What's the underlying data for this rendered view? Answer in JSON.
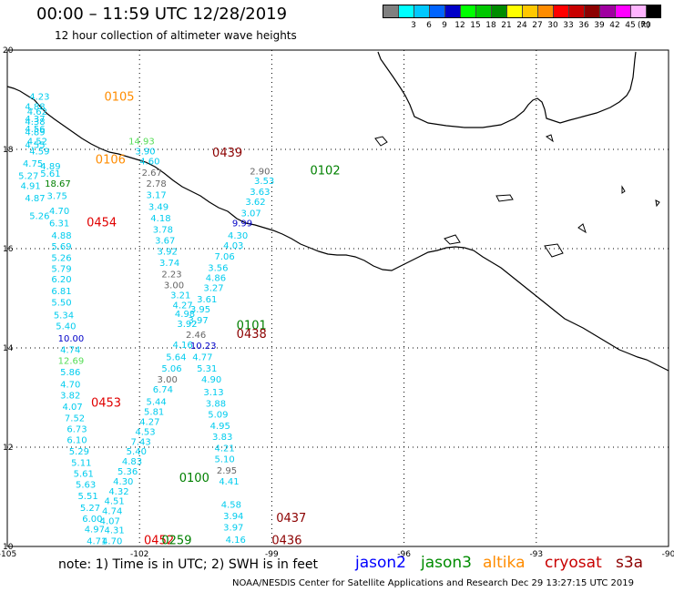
{
  "header": {
    "title": "00:00 – 11:59 UTC 12/28/2019",
    "subtitle": "12 hour collection of altimeter wave heights"
  },
  "legend": {
    "unit": "(ft)",
    "bins": [
      {
        "label": "",
        "color": "#808080"
      },
      {
        "label": "3",
        "color": "#00ffff"
      },
      {
        "label": "6",
        "color": "#00c8ff"
      },
      {
        "label": "9",
        "color": "#0064ff"
      },
      {
        "label": "12",
        "color": "#0000c8"
      },
      {
        "label": "15",
        "color": "#00ff00"
      },
      {
        "label": "18",
        "color": "#00c800"
      },
      {
        "label": "21",
        "color": "#008c00"
      },
      {
        "label": "24",
        "color": "#ffff00"
      },
      {
        "label": "27",
        "color": "#ffc800"
      },
      {
        "label": "30",
        "color": "#ff8c00"
      },
      {
        "label": "33",
        "color": "#ff0000"
      },
      {
        "label": "36",
        "color": "#c80000"
      },
      {
        "label": "39",
        "color": "#8c0000"
      },
      {
        "label": "42",
        "color": "#a000a0"
      },
      {
        "label": "45",
        "color": "#ff00ff"
      },
      {
        "label": "70",
        "color": "#ffb4ff"
      },
      {
        "label": "",
        "color": "#000000"
      }
    ]
  },
  "axes": {
    "lon_ticks": [
      "-105",
      "-102",
      "-99",
      "-96",
      "-93",
      "-90"
    ],
    "lat_ticks": [
      "20",
      "18",
      "16",
      "14",
      "12",
      "10"
    ]
  },
  "colors": {
    "jason2": "#0000ff",
    "jason3": "#008c00",
    "altika": "#ff8c00",
    "cryosat": "#c80000",
    "s3a": "#8c0000",
    "cyan": "#00ccee",
    "gray": "#666666",
    "navy": "#0000c8",
    "lightgreen": "#55dd55",
    "darkgreen": "#008000",
    "red": "#e00000",
    "darkred": "#8c0000"
  },
  "track_labels": [
    {
      "text": "0105",
      "lon": -102.8,
      "lat": 18.98,
      "color": "altika"
    },
    {
      "text": "0106",
      "lon": -103.0,
      "lat": 17.72,
      "color": "altika"
    },
    {
      "text": "0454",
      "lon": -103.2,
      "lat": 16.45,
      "color": "red"
    },
    {
      "text": "0453",
      "lon": -103.1,
      "lat": 12.82,
      "color": "red"
    },
    {
      "text": "0439",
      "lon": -100.35,
      "lat": 17.85,
      "color": "darkred"
    },
    {
      "text": "0102",
      "lon": -98.13,
      "lat": 17.5,
      "color": "darkgreen"
    },
    {
      "text": "0101",
      "lon": -99.8,
      "lat": 14.38,
      "color": "darkgreen"
    },
    {
      "text": "0438",
      "lon": -99.8,
      "lat": 14.2,
      "color": "darkred"
    },
    {
      "text": "0100",
      "lon": -101.1,
      "lat": 11.3,
      "color": "darkgreen"
    },
    {
      "text": "0437",
      "lon": -98.9,
      "lat": 10.5,
      "color": "darkred"
    },
    {
      "text": "0436",
      "lon": -99.0,
      "lat": 10.05,
      "color": "darkred"
    },
    {
      "text": "0452",
      "lon": -101.9,
      "lat": 10.05,
      "color": "red"
    },
    {
      "text": "0259",
      "lon": -101.5,
      "lat": 10.05,
      "color": "darkgreen"
    }
  ],
  "observations": [
    {
      "v": "4.23",
      "lon": -104.5,
      "lat": 19.0,
      "c": "cyan"
    },
    {
      "v": "4.88",
      "lon": -104.6,
      "lat": 18.8,
      "c": "cyan"
    },
    {
      "v": "4.62",
      "lon": -104.55,
      "lat": 18.7,
      "c": "cyan"
    },
    {
      "v": "4.37",
      "lon": -104.6,
      "lat": 18.55,
      "c": "cyan"
    },
    {
      "v": "4.38",
      "lon": -104.6,
      "lat": 18.5,
      "c": "cyan"
    },
    {
      "v": "4.56",
      "lon": -104.6,
      "lat": 18.35,
      "c": "cyan"
    },
    {
      "v": "4.89",
      "lon": -104.6,
      "lat": 18.28,
      "c": "cyan"
    },
    {
      "v": "4.52",
      "lon": -104.55,
      "lat": 18.1,
      "c": "cyan"
    },
    {
      "v": "4.55",
      "lon": -104.6,
      "lat": 18.03,
      "c": "cyan"
    },
    {
      "v": "4.59",
      "lon": -104.5,
      "lat": 17.9,
      "c": "cyan"
    },
    {
      "v": "4.75",
      "lon": -104.65,
      "lat": 17.65,
      "c": "cyan"
    },
    {
      "v": "4.89",
      "lon": -104.25,
      "lat": 17.6,
      "c": "cyan"
    },
    {
      "v": "5.61",
      "lon": -104.25,
      "lat": 17.45,
      "c": "cyan"
    },
    {
      "v": "5.27",
      "lon": -104.75,
      "lat": 17.4,
      "c": "cyan"
    },
    {
      "v": "18.67",
      "lon": -104.15,
      "lat": 17.25,
      "c": "darkgreen"
    },
    {
      "v": "4.91",
      "lon": -104.7,
      "lat": 17.2,
      "c": "cyan"
    },
    {
      "v": "3.75",
      "lon": -104.1,
      "lat": 17.0,
      "c": "cyan"
    },
    {
      "v": "4.87",
      "lon": -104.6,
      "lat": 16.95,
      "c": "cyan"
    },
    {
      "v": "4.70",
      "lon": -104.05,
      "lat": 16.7,
      "c": "cyan"
    },
    {
      "v": "5.26",
      "lon": -104.5,
      "lat": 16.6,
      "c": "cyan"
    },
    {
      "v": "6.31",
      "lon": -104.05,
      "lat": 16.45,
      "c": "cyan"
    },
    {
      "v": "4.88",
      "lon": -104.0,
      "lat": 16.2,
      "c": "cyan"
    },
    {
      "v": "5.69",
      "lon": -104.0,
      "lat": 15.98,
      "c": "cyan"
    },
    {
      "v": "5.26",
      "lon": -104.0,
      "lat": 15.75,
      "c": "cyan"
    },
    {
      "v": "5.79",
      "lon": -104.0,
      "lat": 15.53,
      "c": "cyan"
    },
    {
      "v": "6.20",
      "lon": -104.0,
      "lat": 15.32,
      "c": "cyan"
    },
    {
      "v": "6.81",
      "lon": -104.0,
      "lat": 15.08,
      "c": "cyan"
    },
    {
      "v": "5.50",
      "lon": -104.0,
      "lat": 14.85,
      "c": "cyan"
    },
    {
      "v": "5.34",
      "lon": -103.95,
      "lat": 14.6,
      "c": "cyan"
    },
    {
      "v": "5.40",
      "lon": -103.9,
      "lat": 14.38,
      "c": "cyan"
    },
    {
      "v": "10.00",
      "lon": -103.85,
      "lat": 14.13,
      "c": "navy"
    },
    {
      "v": "4.74",
      "lon": -103.8,
      "lat": 13.9,
      "c": "cyan"
    },
    {
      "v": "12.69",
      "lon": -103.85,
      "lat": 13.68,
      "c": "lightgreen"
    },
    {
      "v": "5.86",
      "lon": -103.8,
      "lat": 13.45,
      "c": "cyan"
    },
    {
      "v": "4.70",
      "lon": -103.8,
      "lat": 13.2,
      "c": "cyan"
    },
    {
      "v": "3.82",
      "lon": -103.8,
      "lat": 12.98,
      "c": "cyan"
    },
    {
      "v": "4.07",
      "lon": -103.75,
      "lat": 12.75,
      "c": "cyan"
    },
    {
      "v": "7.52",
      "lon": -103.7,
      "lat": 12.52,
      "c": "cyan"
    },
    {
      "v": "6.73",
      "lon": -103.65,
      "lat": 12.3,
      "c": "cyan"
    },
    {
      "v": "6.10",
      "lon": -103.65,
      "lat": 12.08,
      "c": "cyan"
    },
    {
      "v": "5.29",
      "lon": -103.6,
      "lat": 11.85,
      "c": "cyan"
    },
    {
      "v": "5.11",
      "lon": -103.55,
      "lat": 11.62,
      "c": "cyan"
    },
    {
      "v": "5.61",
      "lon": -103.5,
      "lat": 11.4,
      "c": "cyan"
    },
    {
      "v": "5.63",
      "lon": -103.45,
      "lat": 11.18,
      "c": "cyan"
    },
    {
      "v": "5.51",
      "lon": -103.4,
      "lat": 10.95,
      "c": "cyan"
    },
    {
      "v": "5.27",
      "lon": -103.35,
      "lat": 10.72,
      "c": "cyan"
    },
    {
      "v": "6.00",
      "lon": -103.3,
      "lat": 10.5,
      "c": "cyan"
    },
    {
      "v": "4.97",
      "lon": -103.25,
      "lat": 10.28,
      "c": "cyan"
    },
    {
      "v": "4.71",
      "lon": -103.2,
      "lat": 10.05,
      "c": "cyan"
    },
    {
      "v": "14.93",
      "lon": -102.25,
      "lat": 18.1,
      "c": "lightgreen"
    },
    {
      "v": "3.90",
      "lon": -102.1,
      "lat": 17.9,
      "c": "cyan"
    },
    {
      "v": "4.60",
      "lon": -102.0,
      "lat": 17.7,
      "c": "cyan"
    },
    {
      "v": "2.67",
      "lon": -101.95,
      "lat": 17.47,
      "c": "gray"
    },
    {
      "v": "2.78",
      "lon": -101.85,
      "lat": 17.25,
      "c": "gray"
    },
    {
      "v": "3.17",
      "lon": -101.85,
      "lat": 17.02,
      "c": "cyan"
    },
    {
      "v": "3.49",
      "lon": -101.8,
      "lat": 16.78,
      "c": "cyan"
    },
    {
      "v": "4.18",
      "lon": -101.75,
      "lat": 16.55,
      "c": "cyan"
    },
    {
      "v": "3.78",
      "lon": -101.7,
      "lat": 16.32,
      "c": "cyan"
    },
    {
      "v": "3.67",
      "lon": -101.65,
      "lat": 16.1,
      "c": "cyan"
    },
    {
      "v": "3.92",
      "lon": -101.6,
      "lat": 15.88,
      "c": "cyan"
    },
    {
      "v": "3.74",
      "lon": -101.55,
      "lat": 15.65,
      "c": "cyan"
    },
    {
      "v": "2.23",
      "lon": -101.5,
      "lat": 15.42,
      "c": "gray"
    },
    {
      "v": "3.00",
      "lon": -101.45,
      "lat": 15.2,
      "c": "gray"
    },
    {
      "v": "3.21",
      "lon": -101.3,
      "lat": 15.0,
      "c": "cyan"
    },
    {
      "v": "4.27",
      "lon": -101.25,
      "lat": 14.8,
      "c": "cyan"
    },
    {
      "v": "4.98",
      "lon": -101.2,
      "lat": 14.62,
      "c": "cyan"
    },
    {
      "v": "3.92",
      "lon": -101.15,
      "lat": 14.42,
      "c": "cyan"
    },
    {
      "v": "2.46",
      "lon": -100.95,
      "lat": 14.2,
      "c": "gray"
    },
    {
      "v": "4.16",
      "lon": -101.25,
      "lat": 14.0,
      "c": "cyan"
    },
    {
      "v": "10.23",
      "lon": -100.85,
      "lat": 13.98,
      "c": "navy"
    },
    {
      "v": "5.64",
      "lon": -101.4,
      "lat": 13.75,
      "c": "cyan"
    },
    {
      "v": "4.77",
      "lon": -100.8,
      "lat": 13.75,
      "c": "cyan"
    },
    {
      "v": "5.06",
      "lon": -101.5,
      "lat": 13.52,
      "c": "cyan"
    },
    {
      "v": "5.31",
      "lon": -100.7,
      "lat": 13.52,
      "c": "cyan"
    },
    {
      "v": "3.00",
      "lon": -101.6,
      "lat": 13.3,
      "c": "gray"
    },
    {
      "v": "4.90",
      "lon": -100.6,
      "lat": 13.3,
      "c": "cyan"
    },
    {
      "v": "6.74",
      "lon": -101.7,
      "lat": 13.1,
      "c": "cyan"
    },
    {
      "v": "3.13",
      "lon": -100.55,
      "lat": 13.05,
      "c": "cyan"
    },
    {
      "v": "5.44",
      "lon": -101.85,
      "lat": 12.85,
      "c": "cyan"
    },
    {
      "v": "3.88",
      "lon": -100.5,
      "lat": 12.82,
      "c": "cyan"
    },
    {
      "v": "5.81",
      "lon": -101.9,
      "lat": 12.65,
      "c": "cyan"
    },
    {
      "v": "5.09",
      "lon": -100.45,
      "lat": 12.6,
      "c": "cyan"
    },
    {
      "v": "4.27",
      "lon": -102.0,
      "lat": 12.45,
      "c": "cyan"
    },
    {
      "v": "4.95",
      "lon": -100.4,
      "lat": 12.37,
      "c": "cyan"
    },
    {
      "v": "4.53",
      "lon": -102.1,
      "lat": 12.25,
      "c": "cyan"
    },
    {
      "v": "7.43",
      "lon": -102.2,
      "lat": 12.05,
      "c": "cyan"
    },
    {
      "v": "3.83",
      "lon": -100.35,
      "lat": 12.15,
      "c": "cyan"
    },
    {
      "v": "5.40",
      "lon": -102.3,
      "lat": 11.85,
      "c": "cyan"
    },
    {
      "v": "4.21",
      "lon": -100.3,
      "lat": 11.92,
      "c": "cyan"
    },
    {
      "v": "4.83",
      "lon": -102.4,
      "lat": 11.65,
      "c": "cyan"
    },
    {
      "v": "5.10",
      "lon": -100.3,
      "lat": 11.7,
      "c": "cyan"
    },
    {
      "v": "5.36",
      "lon": -102.5,
      "lat": 11.45,
      "c": "cyan"
    },
    {
      "v": "2.95",
      "lon": -100.25,
      "lat": 11.47,
      "c": "gray"
    },
    {
      "v": "4.30",
      "lon": -102.6,
      "lat": 11.25,
      "c": "cyan"
    },
    {
      "v": "4.32",
      "lon": -102.7,
      "lat": 11.05,
      "c": "cyan"
    },
    {
      "v": "4.41",
      "lon": -100.2,
      "lat": 11.25,
      "c": "cyan"
    },
    {
      "v": "4.51",
      "lon": -102.8,
      "lat": 10.85,
      "c": "cyan"
    },
    {
      "v": "4.58",
      "lon": -100.15,
      "lat": 10.78,
      "c": "cyan"
    },
    {
      "v": "4.74",
      "lon": -102.85,
      "lat": 10.65,
      "c": "cyan"
    },
    {
      "v": "3.94",
      "lon": -100.1,
      "lat": 10.55,
      "c": "cyan"
    },
    {
      "v": "4.07",
      "lon": -102.9,
      "lat": 10.45,
      "c": "cyan"
    },
    {
      "v": "3.97",
      "lon": -100.1,
      "lat": 10.32,
      "c": "cyan"
    },
    {
      "v": "4.31",
      "lon": -102.8,
      "lat": 10.27,
      "c": "cyan"
    },
    {
      "v": "4.70",
      "lon": -102.85,
      "lat": 10.05,
      "c": "cyan"
    },
    {
      "v": "4.16",
      "lon": -100.05,
      "lat": 10.07,
      "c": "cyan"
    },
    {
      "v": "2.90",
      "lon": -99.5,
      "lat": 17.5,
      "c": "gray"
    },
    {
      "v": "3.53",
      "lon": -99.4,
      "lat": 17.3,
      "c": "cyan"
    },
    {
      "v": "3.63",
      "lon": -99.5,
      "lat": 17.08,
      "c": "cyan"
    },
    {
      "v": "3.62",
      "lon": -99.6,
      "lat": 16.88,
      "c": "cyan"
    },
    {
      "v": "3.07",
      "lon": -99.7,
      "lat": 16.65,
      "c": "cyan"
    },
    {
      "v": "9.99",
      "lon": -99.9,
      "lat": 16.45,
      "c": "navy"
    },
    {
      "v": "4.30",
      "lon": -100.0,
      "lat": 16.2,
      "c": "cyan"
    },
    {
      "v": "4.03",
      "lon": -100.1,
      "lat": 16.0,
      "c": "cyan"
    },
    {
      "v": "7.06",
      "lon": -100.3,
      "lat": 15.78,
      "c": "cyan"
    },
    {
      "v": "3.56",
      "lon": -100.45,
      "lat": 15.55,
      "c": "cyan"
    },
    {
      "v": "4.86",
      "lon": -100.5,
      "lat": 15.35,
      "c": "cyan"
    },
    {
      "v": "3.27",
      "lon": -100.55,
      "lat": 15.15,
      "c": "cyan"
    },
    {
      "v": "3.61",
      "lon": -100.7,
      "lat": 14.92,
      "c": "cyan"
    },
    {
      "v": "3.95",
      "lon": -100.85,
      "lat": 14.72,
      "c": "cyan"
    },
    {
      "v": "3.97",
      "lon": -100.9,
      "lat": 14.5,
      "c": "cyan"
    }
  ],
  "footer": {
    "note": "note:  1) Time is in UTC;  2) SWH is in feet",
    "sats": [
      {
        "name": "jason2",
        "color": "jason2",
        "x": 390
      },
      {
        "name": "jason3",
        "color": "jason3",
        "x": 462
      },
      {
        "name": "altika",
        "color": "altika",
        "x": 530
      },
      {
        "name": "cryosat",
        "color": "cryosat",
        "x": 598
      },
      {
        "name": "s3a",
        "color": "s3a",
        "x": 676
      }
    ],
    "credit": "NOAA/NESDIS Center for Satellite Applications and Research    Dec 29 13:27:15 UTC 2019"
  }
}
